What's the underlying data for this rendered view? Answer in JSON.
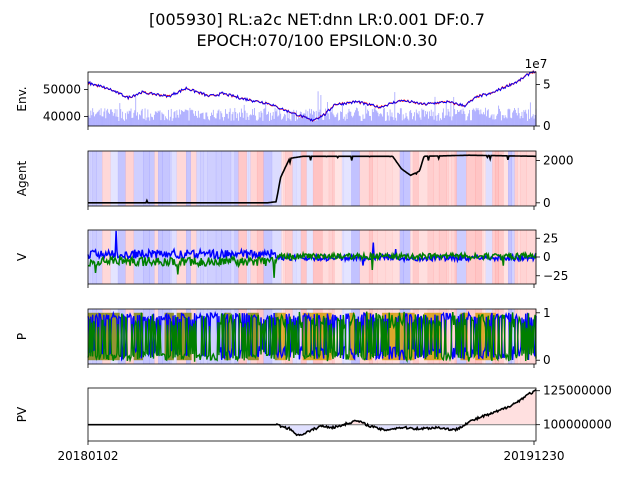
{
  "title_line1": "[005930] RL:a2c NET:dnn LR:0.001 DF:0.7",
  "title_line2": "EPOCH:070/100 EPSILON:0.30",
  "chart_data": [
    {
      "type": "line",
      "ylabel": "Env.",
      "x_start": "20180102",
      "x_end": "20191230",
      "y_ticks": [
        40000,
        50000
      ],
      "y_tick_labels": [
        "40000",
        "50000"
      ],
      "ylim": [
        36500,
        56500
      ],
      "y2_ticks": [
        0,
        5
      ],
      "y2_tick_labels": [
        "0",
        "5"
      ],
      "y2_offset_label": "1e7",
      "y2lim": [
        0,
        6.5
      ],
      "price_anchors": [
        [
          0,
          52500
        ],
        [
          0.05,
          50000
        ],
        [
          0.09,
          47000
        ],
        [
          0.12,
          49000
        ],
        [
          0.18,
          47500
        ],
        [
          0.22,
          50500
        ],
        [
          0.27,
          47500
        ],
        [
          0.3,
          48500
        ],
        [
          0.35,
          46500
        ],
        [
          0.4,
          45000
        ],
        [
          0.43,
          43000
        ],
        [
          0.47,
          40500
        ],
        [
          0.5,
          38500
        ],
        [
          0.53,
          41000
        ],
        [
          0.55,
          44500
        ],
        [
          0.6,
          45500
        ],
        [
          0.65,
          43500
        ],
        [
          0.7,
          46000
        ],
        [
          0.75,
          44500
        ],
        [
          0.8,
          45500
        ],
        [
          0.84,
          44000
        ],
        [
          0.87,
          47500
        ],
        [
          0.9,
          48500
        ],
        [
          0.93,
          51000
        ],
        [
          0.96,
          53000
        ],
        [
          0.99,
          56500
        ]
      ]
    },
    {
      "type": "line",
      "ylabel": "Agent",
      "y_ticks": [
        0,
        2000
      ],
      "y_tick_labels": [
        "0",
        "2000"
      ],
      "ylim": [
        -150,
        2450
      ],
      "anchors": [
        [
          0,
          0
        ],
        [
          0.25,
          0
        ],
        [
          0.4,
          0
        ],
        [
          0.42,
          50
        ],
        [
          0.43,
          1200
        ],
        [
          0.45,
          2100
        ],
        [
          0.48,
          2200
        ],
        [
          0.6,
          2200
        ],
        [
          0.68,
          2200
        ],
        [
          0.7,
          1600
        ],
        [
          0.72,
          1300
        ],
        [
          0.74,
          1500
        ],
        [
          0.75,
          2200
        ],
        [
          0.85,
          2250
        ],
        [
          1,
          2200
        ]
      ]
    },
    {
      "type": "line",
      "ylabel": "V",
      "y_ticks": [
        -25,
        0,
        25
      ],
      "y_tick_labels": [
        "−25",
        "0",
        "25"
      ],
      "ylim": [
        -36,
        36
      ]
    },
    {
      "type": "line",
      "ylabel": "P",
      "y_ticks": [
        0,
        1
      ],
      "y_tick_labels": [
        "0",
        "1"
      ],
      "ylim": [
        -0.08,
        1.08
      ]
    },
    {
      "type": "area",
      "ylabel": "PV",
      "y_ticks": [
        100000000,
        125000000
      ],
      "y_tick_labels": [
        "100000000",
        "125000000"
      ],
      "ylim": [
        88000000,
        127000000
      ],
      "x_ticks": [
        "20180102",
        "20191230"
      ],
      "anchors": [
        [
          0,
          100000000
        ],
        [
          0.3,
          100000000
        ],
        [
          0.42,
          100000000
        ],
        [
          0.45,
          97000000
        ],
        [
          0.47,
          92000000
        ],
        [
          0.5,
          96000000
        ],
        [
          0.52,
          99000000
        ],
        [
          0.55,
          98000000
        ],
        [
          0.58,
          101000000
        ],
        [
          0.6,
          103000000
        ],
        [
          0.63,
          99000000
        ],
        [
          0.66,
          96000000
        ],
        [
          0.7,
          98000000
        ],
        [
          0.74,
          97000000
        ],
        [
          0.78,
          98000000
        ],
        [
          0.82,
          96000000
        ],
        [
          0.85,
          102000000
        ],
        [
          0.88,
          106000000
        ],
        [
          0.9,
          108000000
        ],
        [
          0.93,
          112000000
        ],
        [
          0.96,
          117000000
        ],
        [
          0.98,
          122000000
        ],
        [
          1,
          125000000
        ]
      ]
    }
  ],
  "colors": {
    "price": "#0000ff",
    "price_accent": "#ff0000",
    "volume": "#0000ff",
    "agent_line": "#000000",
    "buy_band": "#ff0000",
    "sell_band": "#0000ff",
    "v_buy": "#0000ff",
    "v_sell": "#007f00",
    "p_buy": "#0000ff",
    "p_sell": "#007f00",
    "p_fill_a": "#808000",
    "p_fill_b": "#d49a00",
    "pv_line": "#000000",
    "pv_pos": "#ff0000",
    "pv_neg": "#0000ff",
    "baseline": "#888888"
  }
}
